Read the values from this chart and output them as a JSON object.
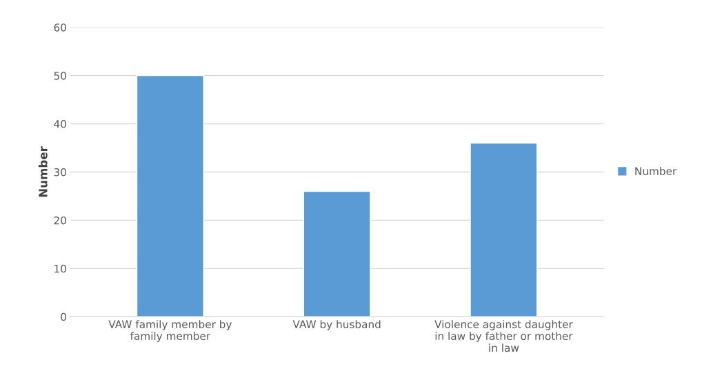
{
  "chart_data": {
    "type": "bar",
    "ylabel": "Number",
    "categories": [
      "VAW family member by family member",
      "VAW by husband",
      "Violence against daughter in law by father or mother in law"
    ],
    "series": [
      {
        "name": "Number",
        "color": "#5b9bd5",
        "values": [
          50,
          26,
          36
        ]
      }
    ],
    "ylim": [
      0,
      60
    ],
    "yticks": [
      0,
      10,
      20,
      30,
      40,
      50,
      60
    ],
    "grid": "y",
    "legend": "right"
  }
}
